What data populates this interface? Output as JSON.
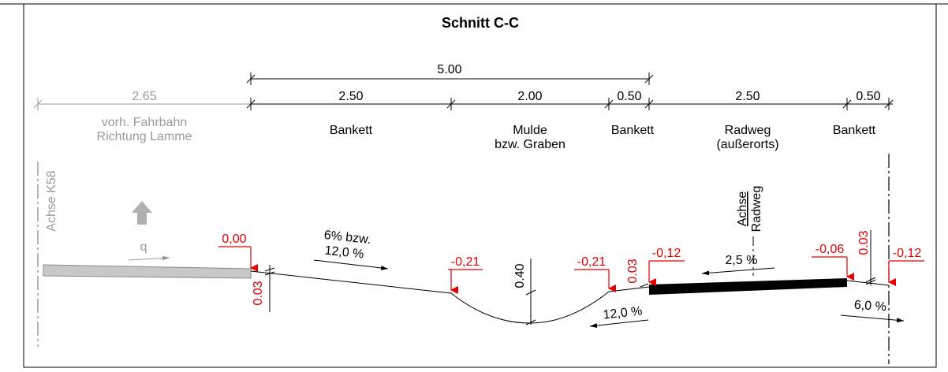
{
  "title": "Schnitt C-C",
  "overall_dimension": "5.00",
  "dimensions": [
    "2.65",
    "2.50",
    "2.00",
    "0.50",
    "2.50",
    "0.50"
  ],
  "zones": [
    [
      "vorh. Fahrbahn",
      "Richtung Lamme"
    ],
    [
      "Bankett"
    ],
    [
      "Mulde",
      "bzw. Graben"
    ],
    [
      "Bankett"
    ],
    [
      "Radweg",
      "(außerorts)"
    ],
    [
      "Bankett"
    ]
  ],
  "axis_labels": {
    "road": "Achse K58",
    "cycle": [
      "Achse",
      "Radweg"
    ]
  },
  "load": "q",
  "elevations": [
    "0,00",
    "-0,21",
    "-0,21",
    "-0,12",
    "-0,06",
    "-0,12"
  ],
  "offsets": [
    "0.03",
    "0.40",
    "0.03",
    "0.03"
  ],
  "slopes": {
    "shoulder": [
      "6% bzw.",
      "12,0 %"
    ],
    "ditch": "12,0 %",
    "cycle": "2,5 %",
    "outer": "6,0 %"
  }
}
